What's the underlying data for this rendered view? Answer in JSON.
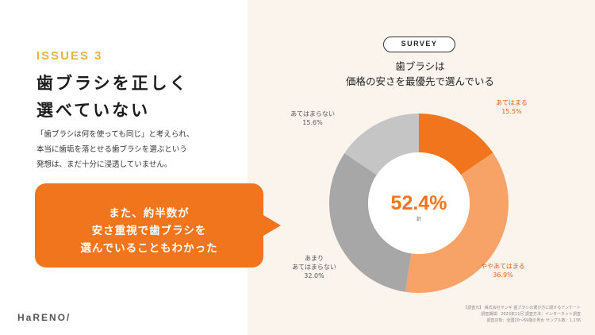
{
  "issue_label": "ISSUES 3",
  "heading": [
    "歯ブラシを正しく",
    "選べていない"
  ],
  "description": [
    "「歯ブラシは何を使っても同じ」と考えられ、",
    "本当に歯垢を落とせる歯ブラシを選ぶという",
    "発想は、まだ十分に浸透していません。"
  ],
  "callout": {
    "lines": [
      "また、約半数が",
      "安さ重視で歯ブラシを",
      "選んでいることもわかった"
    ],
    "color": "#f0751c"
  },
  "logo": "HaRENO/",
  "chart_data": {
    "type": "pie",
    "badge": "SURVEY",
    "title": [
      "歯ブラシは",
      "価格の安さを最優先で選んでいる"
    ],
    "center_value": "52.4%",
    "center_label": "計",
    "slices": [
      {
        "label": [
          "あてはまる"
        ],
        "value": 15.5,
        "value_text": "15.5%",
        "color": "#f0751c",
        "label_color": "#d9651a"
      },
      {
        "label": [
          "ややあてはまる"
        ],
        "value": 36.9,
        "value_text": "36.9%",
        "color": "#f7a266",
        "label_color": "#d9651a"
      },
      {
        "label": [
          "あまり",
          "あてはまらない"
        ],
        "value": 32.0,
        "value_text": "32.0%",
        "color": "#a7a7a7",
        "label_color": "#555555"
      },
      {
        "label": [
          "あてはまらない"
        ],
        "value": 15.6,
        "value_text": "15.6%",
        "color": "#c5c5c5",
        "label_color": "#555555"
      }
    ]
  },
  "source": [
    "【調査元】 株式会社サンギ 歯ブラシの選び方に関するアンケート",
    "調査期間：2023年11月 調査方法：インターネット調査",
    "調査対象：全国20〜69歳の男女 サンプル数：1,236"
  ]
}
